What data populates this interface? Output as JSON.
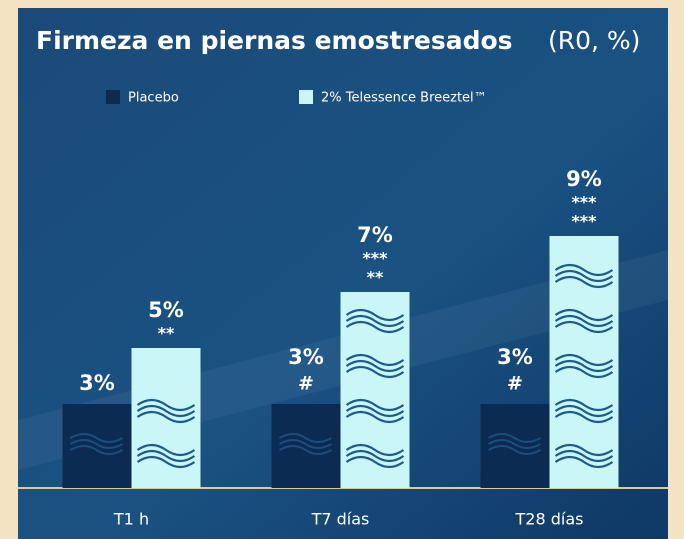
{
  "chart_data": {
    "type": "bar",
    "title": "Firmeza en piernas emostresados",
    "title_unit": "(R0, %)",
    "categories": [
      "T1 h",
      "T7 días",
      "T28 días"
    ],
    "series": [
      {
        "name": "Placebo",
        "color": "#0c2b52",
        "values": [
          3,
          3,
          3
        ],
        "value_labels": [
          "3%",
          "3%",
          "3%"
        ],
        "significance": [
          null,
          "#",
          "#"
        ]
      },
      {
        "name": "2% Telessence Breeztel™",
        "color": "#c9f6f6",
        "values": [
          5,
          7,
          9
        ],
        "value_labels": [
          "5%",
          "7%",
          "9%"
        ],
        "significance": [
          "**",
          "***",
          "***"
        ],
        "significance_vs_placebo": [
          null,
          "**",
          "***"
        ],
        "significance_vs_placebo_color": "#c0229a"
      }
    ],
    "ylim": [
      0,
      10
    ]
  }
}
